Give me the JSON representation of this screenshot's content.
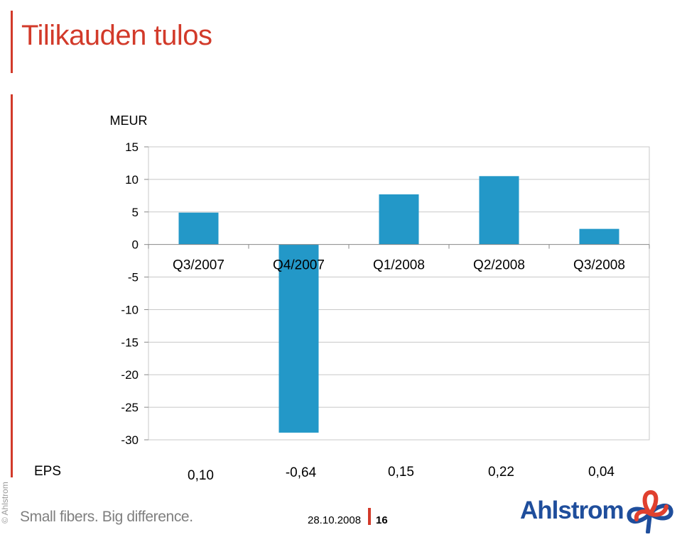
{
  "slide": {
    "title": "Tilikauden tulos",
    "copyright": "© Ahlstrom",
    "tagline": "Small fibers. Big difference.",
    "date": "28.10.2008",
    "page_number": "16",
    "logo_text": "Ahlstrom",
    "accent_color": "#d23a2a"
  },
  "brand": {
    "logo_blue": "#1f4e9c",
    "logo_red": "#e0402e"
  },
  "chart_data": {
    "type": "bar",
    "ylabel": "MEUR",
    "categories": [
      "Q3/2007",
      "Q4/2007",
      "Q1/2008",
      "Q2/2008",
      "Q3/2008"
    ],
    "values": [
      4.9,
      -28.9,
      7.7,
      10.5,
      2.4
    ],
    "ylim": [
      -30,
      15
    ],
    "yticks": [
      15,
      10,
      5,
      0,
      -5,
      -10,
      -15,
      -20,
      -25,
      -30
    ],
    "grid": true,
    "bar_color": "#2398c8",
    "eps_label": "EPS",
    "eps_values": [
      "0,10",
      "-0,64",
      "0,15",
      "0,22",
      "0,04"
    ]
  }
}
